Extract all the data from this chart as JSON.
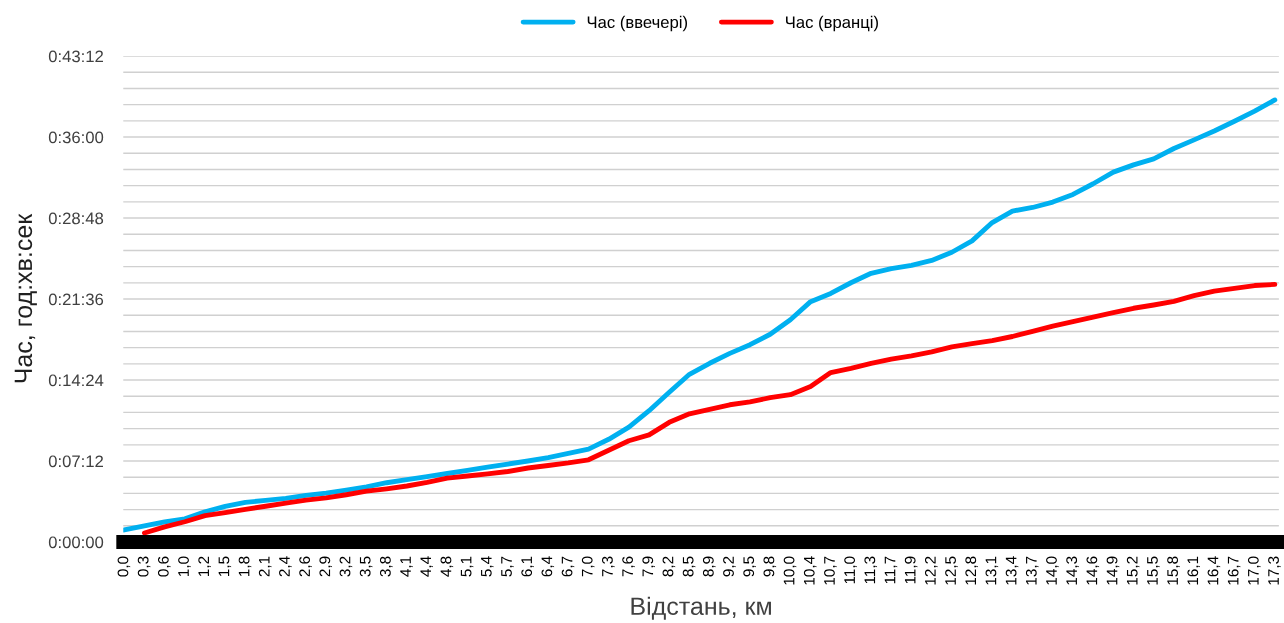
{
  "chart_data": {
    "type": "line",
    "xlabel": "Відстань, км",
    "ylabel": "Час, год:хв:сек",
    "categories": [
      "0,0",
      "0,3",
      "0,6",
      "1,0",
      "1,2",
      "1,5",
      "1,8",
      "2,1",
      "2,4",
      "2,6",
      "2,9",
      "3,2",
      "3,5",
      "3,8",
      "4,1",
      "4,4",
      "4,8",
      "5,1",
      "5,4",
      "5,7",
      "6,1",
      "6,4",
      "6,7",
      "7,0",
      "7,3",
      "7,6",
      "7,9",
      "8,2",
      "8,5",
      "8,9",
      "9,2",
      "9,5",
      "9,8",
      "10,0",
      "10,4",
      "10,7",
      "11,0",
      "11,3",
      "11,7",
      "11,9",
      "12,2",
      "12,5",
      "12,8",
      "13,1",
      "13,4",
      "13,7",
      "14,0",
      "14,3",
      "14,6",
      "14,9",
      "15,2",
      "15,5",
      "15,8",
      "16,1",
      "16,4",
      "16,7",
      "17,0",
      "17,3"
    ],
    "series": [
      {
        "name": "Час (ввечері)",
        "color": "#00b0f0",
        "values": [
          1.07,
          1.43,
          1.79,
          2.06,
          2.68,
          3.17,
          3.52,
          3.7,
          3.88,
          4.14,
          4.34,
          4.61,
          4.9,
          5.27,
          5.55,
          5.82,
          6.09,
          6.37,
          6.65,
          6.93,
          7.2,
          7.5,
          7.87,
          8.26,
          9.13,
          10.21,
          11.67,
          13.31,
          14.91,
          15.89,
          16.77,
          17.54,
          18.47,
          19.76,
          21.37,
          22.1,
          23.05,
          23.89,
          24.3,
          24.6,
          25.03,
          25.76,
          26.77,
          28.4,
          29.42,
          29.74,
          30.22,
          30.9,
          31.85,
          32.88,
          33.53,
          34.06,
          34.98,
          35.75,
          36.54,
          37.4,
          38.3,
          39.3
        ]
      },
      {
        "name": "Час (вранці)",
        "color": "#ff0000",
        "values": [
          null,
          0.8,
          1.35,
          1.8,
          2.35,
          2.62,
          2.9,
          3.18,
          3.46,
          3.72,
          3.92,
          4.2,
          4.52,
          4.73,
          4.98,
          5.3,
          5.68,
          5.87,
          6.06,
          6.27,
          6.58,
          6.8,
          7.03,
          7.31,
          8.16,
          9.0,
          9.52,
          10.64,
          11.4,
          11.8,
          12.2,
          12.46,
          12.83,
          13.1,
          13.82,
          15.06,
          15.43,
          15.88,
          16.26,
          16.55,
          16.9,
          17.35,
          17.63,
          17.9,
          18.27,
          18.73,
          19.2,
          19.6,
          20.0,
          20.39,
          20.78,
          21.07,
          21.4,
          21.9,
          22.3,
          22.55,
          22.8,
          22.9
        ]
      }
    ],
    "ylim": [
      0,
      43.2
    ],
    "yticks": [
      {
        "value": 0,
        "label": "0:00:00"
      },
      {
        "value": 1.44,
        "label": null
      },
      {
        "value": 2.88,
        "label": null
      },
      {
        "value": 4.32,
        "label": null
      },
      {
        "value": 5.76,
        "label": null
      },
      {
        "value": 7.2,
        "label": "0:07:12"
      },
      {
        "value": 8.64,
        "label": null
      },
      {
        "value": 10.08,
        "label": null
      },
      {
        "value": 11.52,
        "label": null
      },
      {
        "value": 12.96,
        "label": null
      },
      {
        "value": 14.4,
        "label": "0:14:24"
      },
      {
        "value": 15.84,
        "label": null
      },
      {
        "value": 17.28,
        "label": null
      },
      {
        "value": 18.72,
        "label": null
      },
      {
        "value": 20.16,
        "label": null
      },
      {
        "value": 21.6,
        "label": "0:21:36"
      },
      {
        "value": 23.04,
        "label": null
      },
      {
        "value": 24.48,
        "label": null
      },
      {
        "value": 25.92,
        "label": null
      },
      {
        "value": 27.36,
        "label": null
      },
      {
        "value": 28.8,
        "label": "0:28:48"
      },
      {
        "value": 30.24,
        "label": null
      },
      {
        "value": 31.68,
        "label": null
      },
      {
        "value": 33.12,
        "label": null
      },
      {
        "value": 34.56,
        "label": null
      },
      {
        "value": 36,
        "label": "0:36:00"
      },
      {
        "value": 37.44,
        "label": null
      },
      {
        "value": 38.88,
        "label": null
      },
      {
        "value": 40.32,
        "label": null
      },
      {
        "value": 41.76,
        "label": null
      },
      {
        "value": 43.2,
        "label": "0:43:12"
      }
    ],
    "grid": "y",
    "legend": "top",
    "marker": "none",
    "line_style": "solid"
  }
}
